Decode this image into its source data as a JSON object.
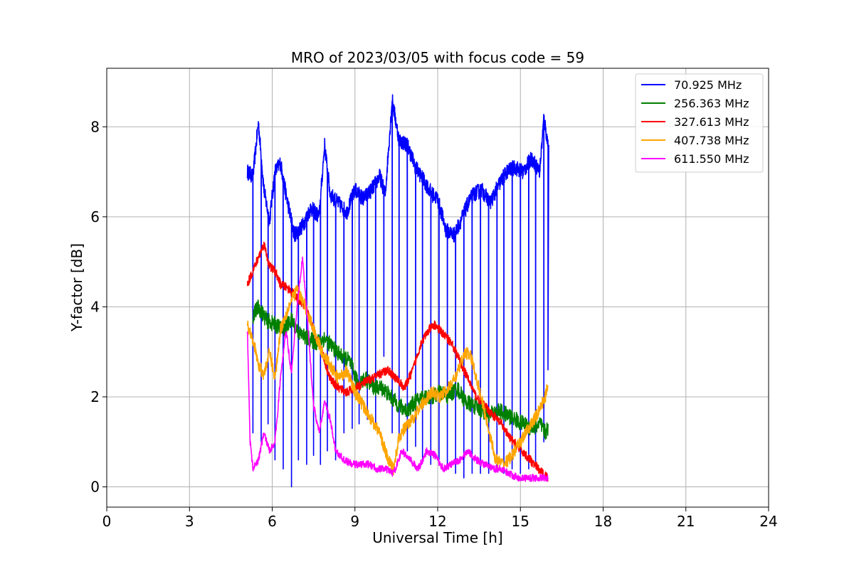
{
  "chart_data": {
    "type": "line",
    "title": "MRO of 2023/03/05 with focus code = 59",
    "xlabel": "Universal Time [h]",
    "ylabel": "Y-factor [dB]",
    "xlim": [
      0,
      24
    ],
    "ylim": [
      -0.45,
      9.3
    ],
    "xticks": [
      0,
      3,
      6,
      9,
      12,
      15,
      18,
      21,
      24
    ],
    "yticks": [
      0,
      2,
      4,
      6,
      8
    ],
    "grid": true,
    "legend_position": "top-right",
    "series": [
      {
        "name": " 70.925 MHz",
        "color": "#0000ff",
        "baseline_x": [
          5.1,
          5.3,
          5.5,
          5.7,
          5.9,
          6.1,
          6.3,
          6.5,
          6.8,
          7.1,
          7.4,
          7.7,
          7.9,
          8.1,
          8.4,
          8.7,
          9.0,
          9.3,
          9.6,
          9.9,
          10.1,
          10.35,
          10.6,
          10.9,
          11.2,
          11.5,
          11.8,
          12.0,
          12.3,
          12.6,
          12.9,
          13.1,
          13.3,
          13.6,
          13.9,
          14.2,
          14.5,
          14.8,
          15.1,
          15.4,
          15.7,
          15.85,
          16.0
        ],
        "baseline_y": [
          7.0,
          6.9,
          8.1,
          6.6,
          5.9,
          7.0,
          7.2,
          6.5,
          5.6,
          5.8,
          6.2,
          6.0,
          7.6,
          6.5,
          6.3,
          6.1,
          6.6,
          6.4,
          6.6,
          6.9,
          6.5,
          8.6,
          7.7,
          7.6,
          7.1,
          6.8,
          6.5,
          6.4,
          5.7,
          5.6,
          6.0,
          6.3,
          6.5,
          6.6,
          6.3,
          6.7,
          7.0,
          7.1,
          7.0,
          7.3,
          7.0,
          8.2,
          7.6
        ],
        "dip_x": [
          5.3,
          5.6,
          5.85,
          6.1,
          6.4,
          6.7,
          6.95,
          7.25,
          7.5,
          7.75,
          8.0,
          8.3,
          8.6,
          8.9,
          9.15,
          9.45,
          9.75,
          10.05,
          10.35,
          10.6,
          10.9,
          11.2,
          11.45,
          11.75,
          12.05,
          12.35,
          12.65,
          12.95,
          13.25,
          13.55,
          13.85,
          14.15,
          14.4,
          14.7,
          15.0,
          15.3,
          15.55,
          15.85,
          16.0
        ],
        "dip_y": [
          1.2,
          1.0,
          1.4,
          0.6,
          0.4,
          0.0,
          0.6,
          0.5,
          0.7,
          0.5,
          0.8,
          0.6,
          1.2,
          1.3,
          1.4,
          1.5,
          1.3,
          2.9,
          1.2,
          1.1,
          0.8,
          0.9,
          0.6,
          0.5,
          0.6,
          0.5,
          0.3,
          0.2,
          0.3,
          0.3,
          0.3,
          0.4,
          0.3,
          0.4,
          0.3,
          0.4,
          0.5,
          1.0,
          2.6
        ]
      },
      {
        "name": "256.363 MHz",
        "color": "#008000",
        "noise": 0.18,
        "x": [
          5.3,
          5.5,
          5.8,
          6.1,
          6.4,
          6.7,
          7.0,
          7.3,
          7.6,
          7.9,
          8.2,
          8.5,
          8.8,
          9.1,
          9.4,
          9.7,
          10.0,
          10.3,
          10.6,
          10.9,
          11.2,
          11.5,
          11.8,
          12.1,
          12.4,
          12.7,
          13.0,
          13.3,
          13.6,
          13.9,
          14.2,
          14.5,
          14.8,
          15.1,
          15.4,
          15.7,
          15.9,
          16.0
        ],
        "y": [
          3.8,
          4.0,
          3.7,
          3.6,
          3.5,
          3.7,
          3.4,
          3.3,
          3.2,
          3.3,
          3.1,
          2.9,
          2.8,
          2.3,
          2.4,
          2.2,
          2.2,
          2.0,
          1.8,
          1.7,
          1.9,
          2.0,
          2.0,
          2.1,
          2.0,
          2.2,
          1.9,
          1.8,
          1.7,
          1.6,
          1.7,
          1.6,
          1.5,
          1.4,
          1.3,
          1.4,
          1.2,
          1.3
        ]
      },
      {
        "name": "327.613 MHz",
        "color": "#ff0000",
        "noise": 0.1,
        "x": [
          5.1,
          5.3,
          5.5,
          5.7,
          5.9,
          6.1,
          6.3,
          6.6,
          6.9,
          7.2,
          7.5,
          7.8,
          8.1,
          8.4,
          8.7,
          9.0,
          9.3,
          9.6,
          9.9,
          10.2,
          10.5,
          10.8,
          11.1,
          11.4,
          11.7,
          11.9,
          12.2,
          12.5,
          12.8,
          13.1,
          13.4,
          13.7,
          14.0,
          14.3,
          14.6,
          14.9,
          15.2,
          15.5,
          15.8,
          16.0
        ],
        "y": [
          4.5,
          4.8,
          5.1,
          5.4,
          4.9,
          4.8,
          4.5,
          4.4,
          4.2,
          4.0,
          3.5,
          3.0,
          2.4,
          2.2,
          2.1,
          2.2,
          2.3,
          2.4,
          2.5,
          2.6,
          2.4,
          2.2,
          2.6,
          3.2,
          3.5,
          3.6,
          3.4,
          3.2,
          2.8,
          2.4,
          2.0,
          1.8,
          1.6,
          1.4,
          1.1,
          0.9,
          0.7,
          0.5,
          0.3,
          0.2
        ]
      },
      {
        "name": "407.738 MHz",
        "color": "#ffa500",
        "noise": 0.14,
        "x": [
          5.1,
          5.3,
          5.5,
          5.7,
          5.9,
          6.1,
          6.3,
          6.6,
          6.9,
          7.2,
          7.5,
          7.8,
          8.1,
          8.4,
          8.7,
          9.0,
          9.3,
          9.6,
          9.9,
          10.2,
          10.4,
          10.6,
          10.9,
          11.2,
          11.5,
          11.8,
          12.1,
          12.4,
          12.7,
          13.0,
          13.2,
          13.5,
          13.8,
          14.1,
          14.4,
          14.7,
          15.0,
          15.3,
          15.6,
          15.9,
          16.0
        ],
        "y": [
          3.6,
          3.3,
          2.7,
          2.5,
          3.0,
          2.4,
          3.5,
          4.0,
          4.4,
          4.0,
          3.5,
          3.0,
          2.7,
          2.4,
          2.6,
          2.1,
          1.8,
          1.5,
          1.2,
          0.6,
          0.4,
          1.1,
          1.4,
          1.6,
          1.9,
          2.1,
          2.0,
          2.2,
          2.5,
          3.0,
          2.9,
          2.2,
          1.4,
          0.6,
          0.5,
          0.7,
          1.0,
          1.3,
          1.6,
          2.0,
          2.3
        ]
      },
      {
        "name": "611.550 MHz",
        "color": "#ff00ff",
        "noise": 0.08,
        "x": [
          5.1,
          5.2,
          5.3,
          5.5,
          5.7,
          5.9,
          6.1,
          6.3,
          6.5,
          6.7,
          6.9,
          7.1,
          7.3,
          7.5,
          7.7,
          7.9,
          8.1,
          8.3,
          8.6,
          8.9,
          9.2,
          9.5,
          9.8,
          10.1,
          10.4,
          10.7,
          11.0,
          11.3,
          11.6,
          11.9,
          12.2,
          12.5,
          12.8,
          13.1,
          13.4,
          13.7,
          14.0,
          14.3,
          14.6,
          14.9,
          15.2,
          15.5,
          15.8,
          16.0
        ],
        "y": [
          3.5,
          1.0,
          0.4,
          0.6,
          1.2,
          0.8,
          1.0,
          2.4,
          3.5,
          2.5,
          4.0,
          5.1,
          3.5,
          1.8,
          1.2,
          1.9,
          1.5,
          0.8,
          0.6,
          0.5,
          0.5,
          0.5,
          0.4,
          0.4,
          0.3,
          0.8,
          0.6,
          0.4,
          0.8,
          0.7,
          0.4,
          0.5,
          0.6,
          0.8,
          0.6,
          0.5,
          0.4,
          0.4,
          0.3,
          0.2,
          0.2,
          0.2,
          0.2,
          0.2
        ]
      }
    ]
  }
}
